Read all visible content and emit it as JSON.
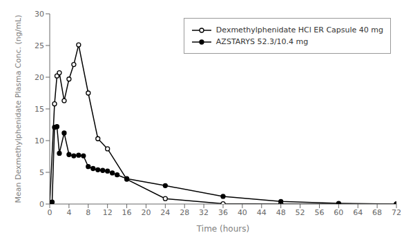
{
  "chart_data": {
    "type": "line",
    "xlabel": "Time (hours)",
    "ylabel": "Mean Dexmethylphenidate Plasma Conc. (ng/mL)",
    "xlim": [
      0,
      72
    ],
    "ylim": [
      0,
      30
    ],
    "xticks": [
      0,
      4,
      8,
      12,
      16,
      20,
      24,
      28,
      32,
      36,
      40,
      44,
      48,
      52,
      56,
      60,
      64,
      68,
      72
    ],
    "yticks": [
      0,
      5,
      10,
      15,
      20,
      25,
      30
    ],
    "grid": false,
    "legend": "upper right",
    "series": [
      {
        "name": "Dexmethylphenidate HCl ER Capsule 40 mg",
        "color": "#000000",
        "marker": "open_circle",
        "x": [
          0,
          1,
          1.5,
          2,
          3,
          4,
          5,
          6,
          8,
          10,
          12,
          16,
          24,
          36,
          48,
          60,
          72
        ],
        "values": [
          0,
          15.8,
          20.2,
          20.7,
          16.3,
          19.7,
          22.0,
          25.1,
          17.5,
          10.3,
          8.7,
          3.9,
          0.85,
          0.05,
          0.0,
          0.0,
          0.0
        ]
      },
      {
        "name": "AZSTARYS 52.3/10.4 mg",
        "color": "#000000",
        "marker": "filled_circle",
        "x": [
          0,
          0.5,
          1,
          1.5,
          2,
          3,
          4,
          5,
          6,
          7,
          8,
          9,
          10,
          11,
          12,
          13,
          14,
          16,
          24,
          36,
          48,
          60,
          72
        ],
        "values": [
          0,
          0.3,
          12.1,
          12.2,
          8.0,
          11.2,
          7.8,
          7.6,
          7.7,
          7.6,
          5.9,
          5.6,
          5.4,
          5.3,
          5.2,
          4.9,
          4.6,
          4.0,
          2.9,
          1.2,
          0.4,
          0.1,
          0.0
        ]
      }
    ]
  }
}
